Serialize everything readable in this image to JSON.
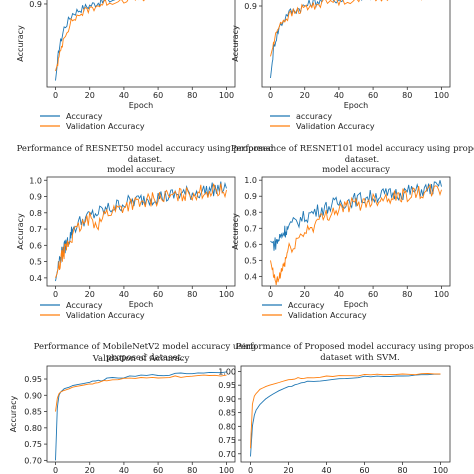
{
  "colors": {
    "accuracy": "#1f77b4",
    "validation": "#ff7f0e"
  },
  "captions": [
    [
      "Performance of RESNET50 model accuracy using proposed",
      "dataset."
    ],
    [
      "Performance of RESNET101 model accuracy using proposed",
      "dataset."
    ],
    [
      "Performance of MobileNetV2 model accuracy using",
      "proposed dataset."
    ],
    [
      "Performance of Proposed model accuracy using proposed",
      "dataset with SVM."
    ]
  ],
  "chart_data": [
    {
      "type": "line",
      "title": "",
      "xlabel": "Epoch",
      "ylabel": "Accuracy",
      "xlim": [
        -5,
        105
      ],
      "ylim": [
        0.38,
        1.0
      ],
      "xticks": [
        "0",
        "20",
        "40",
        "60",
        "80",
        "100"
      ],
      "yticks": [
        "0.9"
      ],
      "legend": [
        "Accuracy",
        "Validation Accuracy"
      ],
      "legend_loc": "below-left",
      "series": [
        {
          "name": "Accuracy",
          "x": [
            0,
            2,
            5,
            10,
            15,
            20,
            25,
            30,
            40,
            50,
            60,
            70,
            80,
            90,
            100
          ],
          "y": [
            0.42,
            0.62,
            0.75,
            0.84,
            0.87,
            0.89,
            0.91,
            0.92,
            0.94,
            0.95,
            0.96,
            0.965,
            0.97,
            0.97,
            0.975
          ]
        },
        {
          "name": "Validation Accuracy",
          "x": [
            0,
            2,
            5,
            10,
            15,
            20,
            25,
            30,
            40,
            50,
            60,
            70,
            80,
            90,
            100
          ],
          "y": [
            0.48,
            0.56,
            0.7,
            0.8,
            0.84,
            0.87,
            0.89,
            0.91,
            0.93,
            0.94,
            0.95,
            0.955,
            0.96,
            0.96,
            0.965
          ]
        }
      ]
    },
    {
      "type": "line",
      "title": "",
      "xlabel": "Epoch",
      "ylabel": "Accuracy",
      "xlim": [
        -5,
        105
      ],
      "ylim": [
        0.45,
        1.0
      ],
      "xticks": [
        "0",
        "20",
        "40",
        "60",
        "80",
        "100"
      ],
      "yticks": [
        "0.9"
      ],
      "legend": [
        "accuracy",
        "Validation Accuracy"
      ],
      "legend_loc": "below-left",
      "series": [
        {
          "name": "accuracy",
          "x": [
            0,
            2,
            5,
            10,
            15,
            20,
            25,
            30,
            40,
            50,
            60,
            70,
            80,
            90,
            100
          ],
          "y": [
            0.5,
            0.68,
            0.78,
            0.86,
            0.88,
            0.9,
            0.92,
            0.93,
            0.94,
            0.95,
            0.96,
            0.965,
            0.97,
            0.97,
            0.975
          ]
        },
        {
          "name": "Validation Accuracy",
          "x": [
            0,
            2,
            5,
            10,
            15,
            20,
            25,
            30,
            40,
            50,
            60,
            70,
            80,
            90,
            100
          ],
          "y": [
            0.62,
            0.7,
            0.8,
            0.84,
            0.87,
            0.89,
            0.9,
            0.92,
            0.93,
            0.94,
            0.95,
            0.955,
            0.96,
            0.96,
            0.965
          ]
        }
      ]
    },
    {
      "type": "line",
      "title": "model accuracy",
      "xlabel": "Epoch",
      "ylabel": "Accuracy",
      "xlim": [
        -5,
        105
      ],
      "ylim": [
        0.35,
        1.02
      ],
      "xticks": [
        "0",
        "20",
        "40",
        "60",
        "80",
        "100"
      ],
      "yticks": [
        "0.4",
        "0.5",
        "0.6",
        "0.7",
        "0.8",
        "0.9",
        "1.0"
      ],
      "legend": [
        "Accuracy",
        "Validation Accuracy"
      ],
      "legend_loc": "below-left",
      "series": [
        {
          "name": "Accuracy",
          "x": [
            0,
            2,
            4,
            6,
            8,
            10,
            15,
            20,
            25,
            30,
            35,
            40,
            45,
            50,
            55,
            60,
            65,
            70,
            75,
            80,
            85,
            90,
            95,
            100
          ],
          "y": [
            0.38,
            0.5,
            0.56,
            0.6,
            0.64,
            0.7,
            0.75,
            0.78,
            0.8,
            0.82,
            0.84,
            0.86,
            0.87,
            0.88,
            0.89,
            0.9,
            0.9,
            0.91,
            0.92,
            0.92,
            0.93,
            0.94,
            0.95,
            0.95
          ]
        },
        {
          "name": "Validation Accuracy",
          "x": [
            0,
            2,
            4,
            6,
            8,
            10,
            15,
            20,
            25,
            30,
            35,
            40,
            45,
            50,
            55,
            60,
            65,
            70,
            75,
            80,
            85,
            90,
            95,
            100
          ],
          "y": [
            0.4,
            0.46,
            0.54,
            0.58,
            0.62,
            0.66,
            0.72,
            0.76,
            0.74,
            0.8,
            0.82,
            0.84,
            0.86,
            0.85,
            0.88,
            0.89,
            0.9,
            0.9,
            0.91,
            0.92,
            0.93,
            0.93,
            0.94,
            0.94
          ]
        }
      ]
    },
    {
      "type": "line",
      "title": "model accuracy",
      "xlabel": "Epoch",
      "ylabel": "Accuracy",
      "xlim": [
        -5,
        105
      ],
      "ylim": [
        0.34,
        1.02
      ],
      "xticks": [
        "0",
        "20",
        "40",
        "60",
        "80",
        "100"
      ],
      "yticks": [
        "0.4",
        "0.5",
        "0.6",
        "0.7",
        "0.8",
        "0.9",
        "1.0"
      ],
      "legend": [
        "Accuracy",
        "Validation Accuracy"
      ],
      "legend_loc": "below-left",
      "series": [
        {
          "name": "Accuracy",
          "x": [
            0,
            2,
            4,
            6,
            8,
            10,
            15,
            20,
            25,
            30,
            35,
            40,
            45,
            50,
            55,
            60,
            65,
            70,
            75,
            80,
            85,
            90,
            95,
            100
          ],
          "y": [
            0.62,
            0.6,
            0.62,
            0.65,
            0.68,
            0.7,
            0.74,
            0.77,
            0.8,
            0.82,
            0.84,
            0.86,
            0.87,
            0.88,
            0.89,
            0.9,
            0.91,
            0.91,
            0.92,
            0.93,
            0.93,
            0.94,
            0.95,
            0.96
          ]
        },
        {
          "name": "Validation Accuracy",
          "x": [
            0,
            2,
            4,
            6,
            8,
            10,
            15,
            20,
            25,
            30,
            35,
            40,
            45,
            50,
            55,
            60,
            65,
            70,
            75,
            80,
            85,
            90,
            95,
            100
          ],
          "y": [
            0.5,
            0.38,
            0.36,
            0.42,
            0.48,
            0.55,
            0.62,
            0.68,
            0.72,
            0.76,
            0.8,
            0.82,
            0.84,
            0.85,
            0.86,
            0.88,
            0.89,
            0.9,
            0.9,
            0.91,
            0.92,
            0.92,
            0.93,
            0.94
          ]
        }
      ]
    },
    {
      "type": "line",
      "title": "Validation of Accuracy",
      "xlabel": "",
      "ylabel": "Accuracy",
      "xlim": [
        -5,
        105
      ],
      "ylim": [
        0.695,
        0.99
      ],
      "xticks": [
        "0",
        "20",
        "40",
        "60",
        "80",
        "100"
      ],
      "yticks": [
        "0.70",
        "0.75",
        "0.80",
        "0.85",
        "0.90",
        "0.95"
      ],
      "legend": [],
      "series": [
        {
          "name": "",
          "x": [
            0,
            1,
            2,
            3,
            5,
            8,
            10,
            15,
            20,
            25,
            30,
            40,
            50,
            60,
            70,
            80,
            90,
            100
          ],
          "y": [
            0.7,
            0.86,
            0.9,
            0.91,
            0.92,
            0.925,
            0.93,
            0.935,
            0.94,
            0.945,
            0.95,
            0.955,
            0.96,
            0.962,
            0.965,
            0.968,
            0.97,
            0.972
          ]
        },
        {
          "name": "",
          "x": [
            0,
            1,
            2,
            3,
            5,
            8,
            10,
            15,
            20,
            25,
            30,
            40,
            50,
            60,
            70,
            80,
            90,
            100
          ],
          "y": [
            0.85,
            0.89,
            0.905,
            0.91,
            0.915,
            0.92,
            0.925,
            0.93,
            0.935,
            0.94,
            0.945,
            0.95,
            0.952,
            0.955,
            0.957,
            0.958,
            0.96,
            0.962
          ]
        }
      ]
    },
    {
      "type": "line",
      "title": "",
      "xlabel": "",
      "ylabel": "",
      "xlim": [
        -5,
        105
      ],
      "ylim": [
        0.67,
        1.02
      ],
      "xticks": [
        "0",
        "20",
        "40",
        "60",
        "80",
        "100"
      ],
      "yticks": [
        "0.70",
        "0.75",
        "0.80",
        "0.85",
        "0.90",
        "0.95",
        "1.00"
      ],
      "legend": [],
      "series": [
        {
          "name": "",
          "x": [
            0,
            1,
            2,
            3,
            5,
            8,
            10,
            15,
            20,
            25,
            30,
            40,
            50,
            60,
            70,
            80,
            90,
            100
          ],
          "y": [
            0.69,
            0.8,
            0.84,
            0.86,
            0.88,
            0.9,
            0.91,
            0.93,
            0.945,
            0.955,
            0.962,
            0.97,
            0.975,
            0.98,
            0.982,
            0.985,
            0.987,
            0.99
          ]
        },
        {
          "name": "",
          "x": [
            0,
            1,
            2,
            3,
            5,
            8,
            10,
            15,
            20,
            25,
            30,
            40,
            50,
            60,
            70,
            80,
            90,
            100
          ],
          "y": [
            0.72,
            0.88,
            0.91,
            0.92,
            0.935,
            0.945,
            0.95,
            0.96,
            0.97,
            0.975,
            0.978,
            0.982,
            0.985,
            0.987,
            0.988,
            0.99,
            0.99,
            0.991
          ]
        }
      ]
    }
  ]
}
